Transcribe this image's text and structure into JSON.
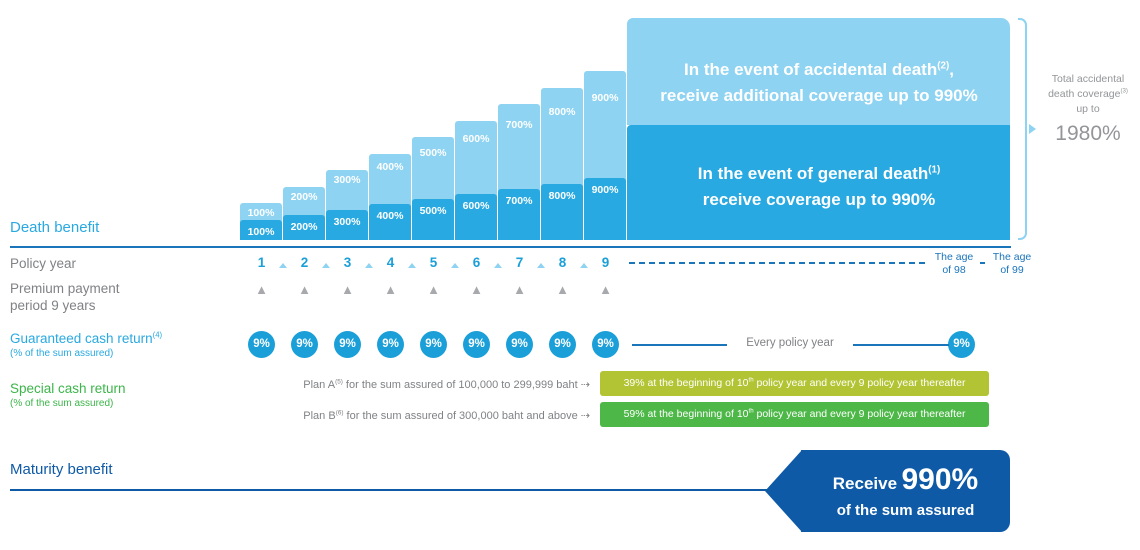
{
  "meta": {
    "title": "Insurance death benefit and cash return diagram"
  },
  "colors": {
    "light_blue": "#8ed3f1",
    "mid_blue": "#29a9e1",
    "coin_blue": "#1b9fd8",
    "line_blue": "#1b75bb",
    "navy": "#0e5aa7",
    "gray_text": "#808285",
    "light_gray_text": "#939598",
    "triangle_gray": "#a7a9ac",
    "green": "#3cb54a",
    "olive_box": "#b2c433",
    "green_box": "#4db848"
  },
  "chart_data": {
    "type": "area",
    "title": "Death benefit coverage by policy year",
    "xlabel": "Policy year",
    "x": [
      1,
      2,
      3,
      4,
      5,
      6,
      7,
      8,
      9
    ],
    "series": [
      {
        "name": "General death coverage (% of the sum assured)",
        "values": [
          100,
          200,
          300,
          400,
          500,
          600,
          700,
          800,
          900
        ],
        "max": 990,
        "color": "#29a9e1"
      },
      {
        "name": "Accidental death additional coverage (% of the sum assured)",
        "values": [
          100,
          200,
          300,
          400,
          500,
          600,
          700,
          800,
          900
        ],
        "max": 990,
        "color": "#8ed3f1"
      }
    ],
    "step_labels": [
      "100%",
      "200%",
      "300%",
      "400%",
      "500%",
      "600%",
      "700%",
      "800%",
      "900%"
    ],
    "total_accidental_coverage": "1980%",
    "guaranteed_cash_return_pct_per_year": 9,
    "special_cash_return": {
      "plan_a_pct": 39,
      "plan_b_pct": 59
    },
    "maturity_benefit_pct": 990
  },
  "chart": {
    "accidental_line1_pre": "In the event of accidental death",
    "accidental_sup": "(2)",
    "accidental_line1_post": ",",
    "accidental_line2": "receive additional coverage up to 990%",
    "general_line1_pre": "In the event of general death",
    "general_sup": "(1)",
    "general_line2": "receive coverage up to 990%",
    "total_line1": "Total accidental",
    "total_line2_pre": "death coverage",
    "total_sup": "(3)",
    "total_line3": "up to",
    "total_value": "1980%"
  },
  "rows": {
    "death_benefit_label": "Death benefit",
    "policy_year_label": "Policy year",
    "years": [
      "1",
      "2",
      "3",
      "4",
      "5",
      "6",
      "7",
      "8",
      "9"
    ],
    "age98_line1": "The age",
    "age98_line2": "of 98",
    "age99_line1": "The age",
    "age99_line2": "of 99",
    "premium_label_line1": "Premium payment",
    "premium_label_line2": "period 9 years",
    "premium_marker": "▲",
    "guaranteed_label_pre": "Guaranteed cash return",
    "guaranteed_sup": "(4)",
    "guaranteed_sub": "(% of the sum assured)",
    "cash_value": "9%",
    "every_policy_year": "Every policy year",
    "special_label": "Special cash return",
    "special_sub": "(% of the sum assured)",
    "arrow": "⇢",
    "plan_a_pre": "Plan A",
    "plan_a_sup": "(5)",
    "plan_a_rest": " for the sum assured of 100,000 to 299,999 baht",
    "plan_b_pre": "Plan B",
    "plan_b_sup": "(6)",
    "plan_b_rest": " for the sum assured of 300,000 baht and above",
    "box_a_pre": "39% at the beginning of 10",
    "box_a_sup": "th",
    "box_a_post": " policy year and every 9 policy year thereafter",
    "box_b_pre": "59% at the beginning of 10",
    "box_b_sup": "th",
    "box_b_post": " policy year and every 9 policy year thereafter",
    "maturity_label": "Maturity benefit",
    "maturity_receive": "Receive",
    "maturity_value": "990%",
    "maturity_sub": "of the sum assured"
  }
}
